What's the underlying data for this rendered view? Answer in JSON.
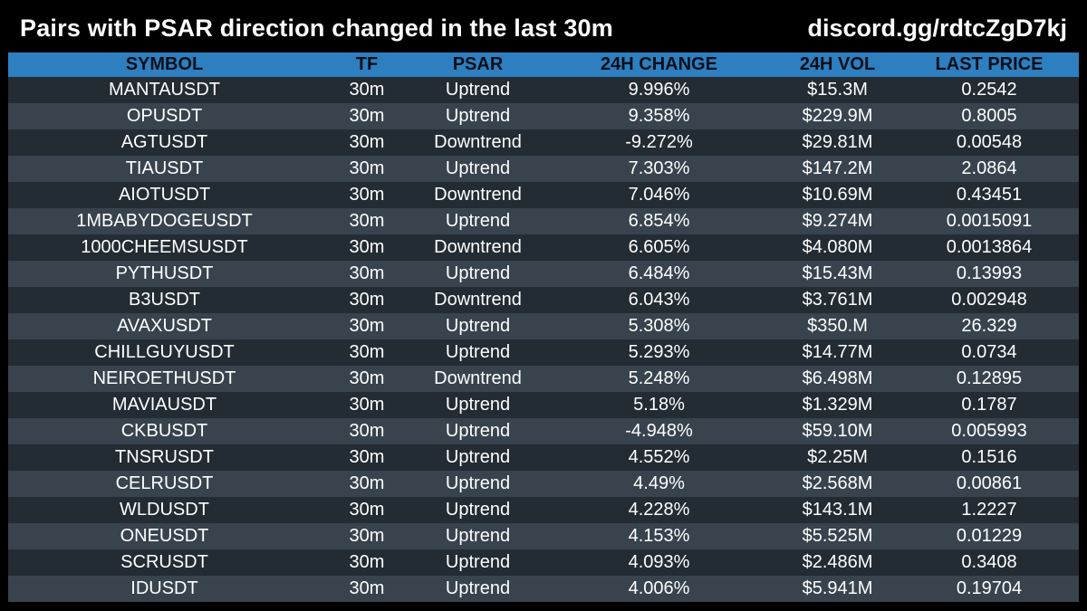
{
  "header": {
    "title": "Pairs with PSAR direction changed in the last 30m",
    "discord": "discord.gg/rdtcZgD7kj"
  },
  "table": {
    "columns": [
      "SYMBOL",
      "TF",
      "PSAR",
      "24H CHANGE",
      "24H VOL",
      "LAST PRICE"
    ],
    "rows": [
      [
        "MANTAUSDT",
        "30m",
        "Uptrend",
        "9.996%",
        "$15.3M",
        "0.2542"
      ],
      [
        "OPUSDT",
        "30m",
        "Uptrend",
        "9.358%",
        "$229.9M",
        "0.8005"
      ],
      [
        "AGTUSDT",
        "30m",
        "Downtrend",
        "-9.272%",
        "$29.81M",
        "0.00548"
      ],
      [
        "TIAUSDT",
        "30m",
        "Uptrend",
        "7.303%",
        "$147.2M",
        "2.0864"
      ],
      [
        "AIOTUSDT",
        "30m",
        "Downtrend",
        "7.046%",
        "$10.69M",
        "0.43451"
      ],
      [
        "1MBABYDOGEUSDT",
        "30m",
        "Uptrend",
        "6.854%",
        "$9.274M",
        "0.0015091"
      ],
      [
        "1000CHEEMSUSDT",
        "30m",
        "Downtrend",
        "6.605%",
        "$4.080M",
        "0.0013864"
      ],
      [
        "PYTHUSDT",
        "30m",
        "Uptrend",
        "6.484%",
        "$15.43M",
        "0.13993"
      ],
      [
        "B3USDT",
        "30m",
        "Downtrend",
        "6.043%",
        "$3.761M",
        "0.002948"
      ],
      [
        "AVAXUSDT",
        "30m",
        "Uptrend",
        "5.308%",
        "$350.M",
        "26.329"
      ],
      [
        "CHILLGUYUSDT",
        "30m",
        "Uptrend",
        "5.293%",
        "$14.77M",
        "0.0734"
      ],
      [
        "NEIROETHUSDT",
        "30m",
        "Downtrend",
        "5.248%",
        "$6.498M",
        "0.12895"
      ],
      [
        "MAVIAUSDT",
        "30m",
        "Uptrend",
        "5.18%",
        "$1.329M",
        "0.1787"
      ],
      [
        "CKBUSDT",
        "30m",
        "Uptrend",
        "-4.948%",
        "$59.10M",
        "0.005993"
      ],
      [
        "TNSRUSDT",
        "30m",
        "Uptrend",
        "4.552%",
        "$2.25M",
        "0.1516"
      ],
      [
        "CELRUSDT",
        "30m",
        "Uptrend",
        "4.49%",
        "$2.568M",
        "0.00861"
      ],
      [
        "WLDUSDT",
        "30m",
        "Uptrend",
        "4.228%",
        "$143.1M",
        "1.2227"
      ],
      [
        "ONEUSDT",
        "30m",
        "Uptrend",
        "4.153%",
        "$5.525M",
        "0.01229"
      ],
      [
        "SCRUSDT",
        "30m",
        "Uptrend",
        "4.093%",
        "$2.486M",
        "0.3408"
      ],
      [
        "IDUSDT",
        "30m",
        "Uptrend",
        "4.006%",
        "$5.941M",
        "0.19704"
      ]
    ]
  },
  "colors": {
    "background": "#000000",
    "header_row": "#2e7fc0",
    "row_dark": "#232b33",
    "row_light": "#38434d",
    "text": "#ffffff"
  }
}
